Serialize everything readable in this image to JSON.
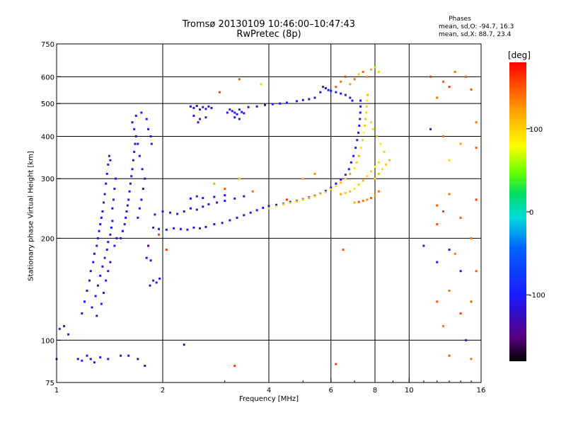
{
  "title_line1": "Tromsø 20130109 10:46:00–10:47:43",
  "title_line2": "RwPretec (8p)",
  "stats": {
    "title": "Phases",
    "line_o": "mean, sd,O: -94.7, 16.3",
    "line_x": "mean, sd,X: 88.7, 23.4"
  },
  "colorbar": {
    "unit_label": "[deg]",
    "ticks": [
      {
        "value": 100,
        "label": "100"
      },
      {
        "value": 0,
        "label": "0"
      },
      {
        "value": -100,
        "label": "-100"
      }
    ],
    "range": [
      -180,
      180
    ]
  },
  "chart_data": {
    "type": "scatter",
    "xlabel": "Frequency [MHz]",
    "ylabel": "Stationary phase Virtual Height [km]",
    "x_scale": "log",
    "y_scale": "log",
    "xlim": [
      1,
      16
    ],
    "ylim": [
      75,
      750
    ],
    "x_ticks": [
      {
        "value": 1,
        "label": "1"
      },
      {
        "value": 2,
        "label": "2"
      },
      {
        "value": 4,
        "label": "4"
      },
      {
        "value": 6,
        "label": "6"
      },
      {
        "value": 8,
        "label": "8"
      },
      {
        "value": 10,
        "label": "10"
      },
      {
        "value": 16,
        "label": "16"
      }
    ],
    "y_ticks": [
      {
        "value": 75,
        "label": "75"
      },
      {
        "value": 100,
        "label": "100"
      },
      {
        "value": 200,
        "label": "200"
      },
      {
        "value": 300,
        "label": "300"
      },
      {
        "value": 400,
        "label": "400"
      },
      {
        "value": 500,
        "label": "500"
      },
      {
        "value": 600,
        "label": "600"
      },
      {
        "value": 750,
        "label": "750"
      }
    ],
    "grid_x": [
      2,
      4,
      6,
      8,
      10
    ],
    "grid_y": [
      100,
      200,
      300,
      400,
      500,
      600
    ],
    "points": [
      [
        1.0,
        88,
        -110
      ],
      [
        1.02,
        108,
        -110
      ],
      [
        1.05,
        110,
        -100
      ],
      [
        1.08,
        104,
        -110
      ],
      [
        1.15,
        88,
        -110
      ],
      [
        1.18,
        87,
        -100
      ],
      [
        1.22,
        90,
        -110
      ],
      [
        1.25,
        88,
        -105
      ],
      [
        1.28,
        86,
        -110
      ],
      [
        1.33,
        89,
        -110
      ],
      [
        1.4,
        88,
        -100
      ],
      [
        1.52,
        90,
        -110
      ],
      [
        1.6,
        90,
        -105
      ],
      [
        1.7,
        88,
        -110
      ],
      [
        1.78,
        84,
        -110
      ],
      [
        1.18,
        120,
        -110
      ],
      [
        1.2,
        130,
        -100
      ],
      [
        1.22,
        140,
        -110
      ],
      [
        1.24,
        150,
        -105
      ],
      [
        1.25,
        160,
        -110
      ],
      [
        1.27,
        170,
        -100
      ],
      [
        1.28,
        180,
        -110
      ],
      [
        1.3,
        190,
        -115
      ],
      [
        1.31,
        200,
        -110
      ],
      [
        1.32,
        210,
        -100
      ],
      [
        1.33,
        220,
        -110
      ],
      [
        1.34,
        230,
        -105
      ],
      [
        1.35,
        240,
        -110
      ],
      [
        1.36,
        255,
        -100
      ],
      [
        1.37,
        270,
        -110
      ],
      [
        1.38,
        290,
        -110
      ],
      [
        1.39,
        310,
        -105
      ],
      [
        1.4,
        330,
        -110
      ],
      [
        1.41,
        350,
        -100
      ],
      [
        1.42,
        340,
        -110
      ],
      [
        1.26,
        125,
        -110
      ],
      [
        1.29,
        135,
        -100
      ],
      [
        1.31,
        145,
        -110
      ],
      [
        1.33,
        155,
        -115
      ],
      [
        1.35,
        165,
        -110
      ],
      [
        1.37,
        175,
        -100
      ],
      [
        1.39,
        185,
        -110
      ],
      [
        1.4,
        195,
        -105
      ],
      [
        1.42,
        205,
        -110
      ],
      [
        1.43,
        215,
        -100
      ],
      [
        1.44,
        225,
        -110
      ],
      [
        1.44,
        245,
        -110
      ],
      [
        1.45,
        260,
        -100
      ],
      [
        1.46,
        280,
        -110
      ],
      [
        1.47,
        300,
        -105
      ],
      [
        1.3,
        118,
        -110
      ],
      [
        1.34,
        128,
        -105
      ],
      [
        1.36,
        138,
        -110
      ],
      [
        1.38,
        150,
        -100
      ],
      [
        1.4,
        160,
        -110
      ],
      [
        1.42,
        170,
        -110
      ],
      [
        1.46,
        190,
        -100
      ],
      [
        1.48,
        200,
        -110
      ],
      [
        1.52,
        200,
        -110
      ],
      [
        1.54,
        210,
        -105
      ],
      [
        1.56,
        220,
        -110
      ],
      [
        1.57,
        230,
        -100
      ],
      [
        1.58,
        240,
        -110
      ],
      [
        1.59,
        250,
        -110
      ],
      [
        1.6,
        260,
        -100
      ],
      [
        1.61,
        275,
        -110
      ],
      [
        1.62,
        290,
        -105
      ],
      [
        1.63,
        305,
        -110
      ],
      [
        1.64,
        320,
        -100
      ],
      [
        1.65,
        340,
        -110
      ],
      [
        1.66,
        360,
        -110
      ],
      [
        1.67,
        380,
        -105
      ],
      [
        1.68,
        400,
        -110
      ],
      [
        1.66,
        420,
        -100
      ],
      [
        1.64,
        440,
        -110
      ],
      [
        1.7,
        230,
        -110
      ],
      [
        1.72,
        245,
        -100
      ],
      [
        1.74,
        260,
        -110
      ],
      [
        1.76,
        280,
        -105
      ],
      [
        1.78,
        300,
        -110
      ],
      [
        1.75,
        320,
        -100
      ],
      [
        1.72,
        350,
        -110
      ],
      [
        1.7,
        380,
        -110
      ],
      [
        1.68,
        460,
        -100
      ],
      [
        1.74,
        470,
        -110
      ],
      [
        1.8,
        450,
        -105
      ],
      [
        1.82,
        420,
        -110
      ],
      [
        1.85,
        400,
        -100
      ],
      [
        1.86,
        380,
        -110
      ],
      [
        1.84,
        145,
        -110
      ],
      [
        1.88,
        150,
        -100
      ],
      [
        1.92,
        148,
        -110
      ],
      [
        1.96,
        152,
        -105
      ],
      [
        1.8,
        175,
        -110
      ],
      [
        1.85,
        172,
        -100
      ],
      [
        1.82,
        190,
        -140
      ],
      [
        1.88,
        215,
        -110
      ],
      [
        1.95,
        213,
        -100
      ],
      [
        2.05,
        212,
        -110
      ],
      [
        2.15,
        214,
        -105
      ],
      [
        2.25,
        213,
        -110
      ],
      [
        2.35,
        212,
        -100
      ],
      [
        2.45,
        215,
        -110
      ],
      [
        2.55,
        214,
        -110
      ],
      [
        2.65,
        216,
        -105
      ],
      [
        2.8,
        220,
        -110
      ],
      [
        2.95,
        222,
        -100
      ],
      [
        3.1,
        226,
        -110
      ],
      [
        3.25,
        230,
        -110
      ],
      [
        3.4,
        234,
        -105
      ],
      [
        3.55,
        238,
        -110
      ],
      [
        3.7,
        242,
        -100
      ],
      [
        3.85,
        246,
        -110
      ],
      [
        4.0,
        249,
        -110
      ],
      [
        4.2,
        251,
        -105
      ],
      [
        4.4,
        253,
        -110
      ],
      [
        4.6,
        256,
        -100
      ],
      [
        4.8,
        258,
        -110
      ],
      [
        5.0,
        261,
        -110
      ],
      [
        5.2,
        264,
        -105
      ],
      [
        5.4,
        267,
        -110
      ],
      [
        5.6,
        271,
        -100
      ],
      [
        5.8,
        276,
        -110
      ],
      [
        6.0,
        282,
        -110
      ],
      [
        6.2,
        290,
        -105
      ],
      [
        6.4,
        298,
        -110
      ],
      [
        6.6,
        308,
        -100
      ],
      [
        6.75,
        320,
        -110
      ],
      [
        6.85,
        335,
        -110
      ],
      [
        6.95,
        350,
        -105
      ],
      [
        7.05,
        370,
        -110
      ],
      [
        7.12,
        390,
        -100
      ],
      [
        7.18,
        410,
        -110
      ],
      [
        7.22,
        430,
        -110
      ],
      [
        7.25,
        450,
        -105
      ],
      [
        7.27,
        470,
        -110
      ],
      [
        7.28,
        490,
        -100
      ],
      [
        7.28,
        510,
        -110
      ],
      [
        1.9,
        235,
        -110
      ],
      [
        2.0,
        240,
        -100
      ],
      [
        2.1,
        238,
        -110
      ],
      [
        2.2,
        236,
        -105
      ],
      [
        2.3,
        240,
        -110
      ],
      [
        2.4,
        245,
        -100
      ],
      [
        2.5,
        243,
        -110
      ],
      [
        2.6,
        248,
        -110
      ],
      [
        2.7,
        252,
        -105
      ],
      [
        2.85,
        255,
        -110
      ],
      [
        3.0,
        258,
        -100
      ],
      [
        3.2,
        262,
        -110
      ],
      [
        3.4,
        266,
        -110
      ],
      [
        2.4,
        262,
        -110
      ],
      [
        2.5,
        266,
        -100
      ],
      [
        2.6,
        263,
        -110
      ],
      [
        2.8,
        265,
        -105
      ],
      [
        3.0,
        268,
        -110
      ],
      [
        2.4,
        490,
        -110
      ],
      [
        2.45,
        485,
        -100
      ],
      [
        2.5,
        492,
        -110
      ],
      [
        2.55,
        480,
        -105
      ],
      [
        2.6,
        488,
        -110
      ],
      [
        2.65,
        482,
        -100
      ],
      [
        2.7,
        490,
        -110
      ],
      [
        2.75,
        485,
        -110
      ],
      [
        2.45,
        460,
        -105
      ],
      [
        2.55,
        450,
        -110
      ],
      [
        2.65,
        455,
        -100
      ],
      [
        2.52,
        440,
        -110
      ],
      [
        3.05,
        470,
        -110
      ],
      [
        3.1,
        480,
        -100
      ],
      [
        3.15,
        475,
        -110
      ],
      [
        3.2,
        470,
        -105
      ],
      [
        3.25,
        465,
        -110
      ],
      [
        3.3,
        480,
        -100
      ],
      [
        3.35,
        472,
        -110
      ],
      [
        3.4,
        468,
        -110
      ],
      [
        3.2,
        455,
        -105
      ],
      [
        3.3,
        450,
        -110
      ],
      [
        3.5,
        488,
        -110
      ],
      [
        3.7,
        490,
        -100
      ],
      [
        3.9,
        495,
        -110
      ],
      [
        4.1,
        498,
        -105
      ],
      [
        4.3,
        500,
        -110
      ],
      [
        4.5,
        503,
        -100
      ],
      [
        4.8,
        508,
        -110
      ],
      [
        5.0,
        512,
        -110
      ],
      [
        5.2,
        515,
        -105
      ],
      [
        5.4,
        520,
        -110
      ],
      [
        5.6,
        540,
        -110
      ],
      [
        5.7,
        560,
        -100
      ],
      [
        5.8,
        555,
        -110
      ],
      [
        5.9,
        548,
        -105
      ],
      [
        6.0,
        545,
        -110
      ],
      [
        6.2,
        540,
        -100
      ],
      [
        6.4,
        535,
        -110
      ],
      [
        6.6,
        530,
        -110
      ],
      [
        6.8,
        520,
        -105
      ],
      [
        6.9,
        510,
        -110
      ],
      [
        4.0,
        245,
        60
      ],
      [
        4.2,
        248,
        80
      ],
      [
        4.4,
        252,
        100
      ],
      [
        4.6,
        254,
        90
      ],
      [
        4.8,
        257,
        110
      ],
      [
        5.0,
        260,
        95
      ],
      [
        5.2,
        263,
        120
      ],
      [
        5.4,
        266,
        100
      ],
      [
        5.6,
        270,
        90
      ],
      [
        5.8,
        274,
        110
      ],
      [
        6.0,
        279,
        100
      ],
      [
        6.2,
        285,
        95
      ],
      [
        6.4,
        292,
        110
      ],
      [
        6.6,
        300,
        100
      ],
      [
        6.8,
        310,
        120
      ],
      [
        7.0,
        322,
        90
      ],
      [
        7.1,
        335,
        100
      ],
      [
        7.2,
        350,
        110
      ],
      [
        7.3,
        370,
        95
      ],
      [
        7.38,
        390,
        100
      ],
      [
        7.44,
        410,
        80
      ],
      [
        7.48,
        430,
        100
      ],
      [
        7.52,
        450,
        110
      ],
      [
        7.55,
        470,
        95
      ],
      [
        7.58,
        490,
        100
      ],
      [
        7.6,
        510,
        90
      ],
      [
        7.62,
        530,
        110
      ],
      [
        6.4,
        270,
        120
      ],
      [
        6.6,
        272,
        100
      ],
      [
        6.8,
        275,
        110
      ],
      [
        7.0,
        280,
        90
      ],
      [
        7.2,
        288,
        100
      ],
      [
        7.4,
        296,
        110
      ],
      [
        7.6,
        305,
        95
      ],
      [
        7.8,
        315,
        100
      ],
      [
        8.0,
        325,
        80
      ],
      [
        8.2,
        335,
        100
      ],
      [
        7.6,
        260,
        130
      ],
      [
        7.8,
        263,
        150
      ],
      [
        8.0,
        268,
        120
      ],
      [
        8.2,
        275,
        140
      ],
      [
        7.4,
        258,
        140
      ],
      [
        7.2,
        256,
        150
      ],
      [
        7.0,
        255,
        120
      ],
      [
        8.0,
        300,
        100
      ],
      [
        8.2,
        310,
        110
      ],
      [
        8.4,
        320,
        95
      ],
      [
        8.6,
        330,
        100
      ],
      [
        8.8,
        340,
        110
      ],
      [
        8.5,
        360,
        100
      ],
      [
        8.3,
        380,
        90
      ],
      [
        8.1,
        400,
        110
      ],
      [
        7.9,
        420,
        95
      ],
      [
        7.8,
        440,
        100
      ],
      [
        6.2,
        560,
        150
      ],
      [
        6.4,
        580,
        140
      ],
      [
        6.6,
        600,
        160
      ],
      [
        6.8,
        570,
        120
      ],
      [
        7.0,
        590,
        140
      ],
      [
        7.2,
        610,
        100
      ],
      [
        7.4,
        620,
        150
      ],
      [
        7.6,
        600,
        130
      ],
      [
        7.8,
        630,
        120
      ],
      [
        8.0,
        640,
        60
      ],
      [
        8.2,
        620,
        100
      ],
      [
        3.3,
        590,
        150
      ],
      [
        3.8,
        570,
        100
      ],
      [
        2.9,
        540,
        160
      ],
      [
        11.5,
        600,
        160
      ],
      [
        12.5,
        580,
        150
      ],
      [
        13.5,
        620,
        140
      ],
      [
        14.5,
        600,
        150
      ],
      [
        12.0,
        520,
        140
      ],
      [
        13.0,
        560,
        160
      ],
      [
        15.0,
        550,
        150
      ],
      [
        15.5,
        440,
        140
      ],
      [
        14.0,
        380,
        120
      ],
      [
        13.0,
        340,
        100
      ],
      [
        15.5,
        370,
        150
      ],
      [
        12.5,
        400,
        140
      ],
      [
        11.5,
        420,
        -110
      ],
      [
        12.0,
        250,
        150
      ],
      [
        12.5,
        240,
        160
      ],
      [
        13.0,
        270,
        140
      ],
      [
        14.0,
        230,
        150
      ],
      [
        15.0,
        200,
        140
      ],
      [
        15.5,
        260,
        160
      ],
      [
        12.0,
        220,
        150
      ],
      [
        13.5,
        180,
        140
      ],
      [
        12.0,
        130,
        150
      ],
      [
        13.0,
        140,
        140
      ],
      [
        14.0,
        120,
        160
      ],
      [
        15.0,
        130,
        150
      ],
      [
        15.5,
        160,
        150
      ],
      [
        12.5,
        110,
        140
      ],
      [
        14.5,
        100,
        -110
      ],
      [
        13.0,
        90,
        150
      ],
      [
        15.0,
        88,
        140
      ],
      [
        11.0,
        190,
        -110
      ],
      [
        12.0,
        170,
        -100
      ],
      [
        13.0,
        185,
        -110
      ],
      [
        14.0,
        160,
        -105
      ],
      [
        2.8,
        290,
        120
      ],
      [
        3.0,
        280,
        150
      ],
      [
        3.3,
        300,
        100
      ],
      [
        3.6,
        275,
        140
      ],
      [
        4.5,
        260,
        160
      ],
      [
        5.0,
        300,
        110
      ],
      [
        5.4,
        310,
        130
      ],
      [
        3.2,
        84,
        160
      ],
      [
        2.3,
        97,
        -110
      ],
      [
        6.2,
        85,
        160
      ],
      [
        6.5,
        185,
        150
      ],
      [
        2.05,
        185,
        160
      ],
      [
        1.95,
        205,
        160
      ]
    ]
  }
}
